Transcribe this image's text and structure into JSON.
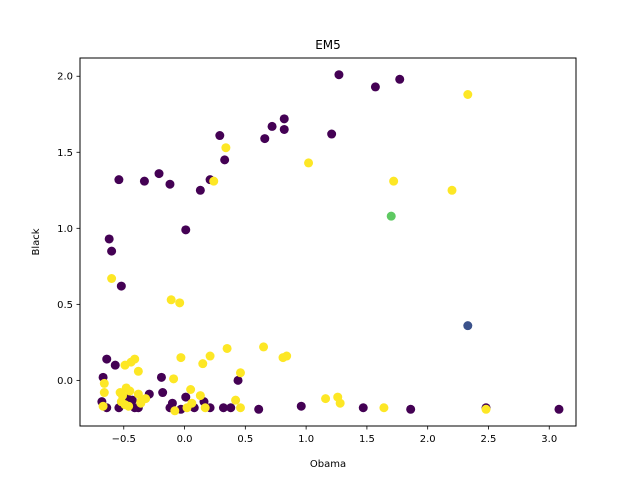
{
  "chart_data": {
    "type": "scatter",
    "title": "EM5",
    "xlabel": "Obama",
    "ylabel": "Black",
    "xlim": [
      -0.86,
      3.22
    ],
    "ylim": [
      -0.3,
      2.12
    ],
    "xticks": [
      -0.5,
      0.0,
      0.5,
      1.0,
      1.5,
      2.0,
      2.5,
      3.0
    ],
    "xtick_labels": [
      "−0.5",
      "0.0",
      "0.5",
      "1.0",
      "1.5",
      "2.0",
      "2.5",
      "3.0"
    ],
    "yticks": [
      0.0,
      0.5,
      1.0,
      1.5,
      2.0
    ],
    "ytick_labels": [
      "0.0",
      "0.5",
      "1.0",
      "1.5",
      "2.0"
    ],
    "grid": false,
    "legend": "none",
    "colors": {
      "c0": "#440154",
      "c1": "#3b528b",
      "c2": "#5ec962",
      "c3": "#fde725"
    },
    "points": [
      {
        "x": 1.27,
        "y": 2.01,
        "c": 0
      },
      {
        "x": 1.77,
        "y": 1.98,
        "c": 0
      },
      {
        "x": 1.57,
        "y": 1.93,
        "c": 0
      },
      {
        "x": 0.82,
        "y": 1.72,
        "c": 0
      },
      {
        "x": 0.72,
        "y": 1.67,
        "c": 0
      },
      {
        "x": 0.82,
        "y": 1.65,
        "c": 0
      },
      {
        "x": 1.21,
        "y": 1.62,
        "c": 0
      },
      {
        "x": 0.29,
        "y": 1.61,
        "c": 0
      },
      {
        "x": 0.66,
        "y": 1.59,
        "c": 0
      },
      {
        "x": 0.33,
        "y": 1.45,
        "c": 0
      },
      {
        "x": -0.21,
        "y": 1.36,
        "c": 0
      },
      {
        "x": -0.54,
        "y": 1.32,
        "c": 0
      },
      {
        "x": -0.33,
        "y": 1.31,
        "c": 0
      },
      {
        "x": 0.21,
        "y": 1.32,
        "c": 0
      },
      {
        "x": -0.12,
        "y": 1.29,
        "c": 0
      },
      {
        "x": 0.13,
        "y": 1.25,
        "c": 0
      },
      {
        "x": 0.01,
        "y": 0.99,
        "c": 0
      },
      {
        "x": -0.62,
        "y": 0.93,
        "c": 0
      },
      {
        "x": -0.6,
        "y": 0.85,
        "c": 0
      },
      {
        "x": -0.52,
        "y": 0.62,
        "c": 0
      },
      {
        "x": -0.64,
        "y": 0.14,
        "c": 0
      },
      {
        "x": -0.57,
        "y": 0.1,
        "c": 0
      },
      {
        "x": -0.67,
        "y": 0.02,
        "c": 0
      },
      {
        "x": -0.19,
        "y": 0.02,
        "c": 0
      },
      {
        "x": 0.44,
        "y": 0.0,
        "c": 0
      },
      {
        "x": -0.29,
        "y": -0.09,
        "c": 0
      },
      {
        "x": -0.18,
        "y": -0.08,
        "c": 0
      },
      {
        "x": -0.47,
        "y": -0.12,
        "c": 0
      },
      {
        "x": -0.43,
        "y": -0.13,
        "c": 0
      },
      {
        "x": 0.01,
        "y": -0.11,
        "c": 0
      },
      {
        "x": 0.16,
        "y": -0.14,
        "c": 0
      },
      {
        "x": -0.68,
        "y": -0.14,
        "c": 0
      },
      {
        "x": -0.64,
        "y": -0.18,
        "c": 0
      },
      {
        "x": -0.54,
        "y": -0.18,
        "c": 0
      },
      {
        "x": -0.41,
        "y": -0.18,
        "c": 0
      },
      {
        "x": -0.38,
        "y": -0.18,
        "c": 0
      },
      {
        "x": -0.12,
        "y": -0.18,
        "c": 0
      },
      {
        "x": -0.1,
        "y": -0.15,
        "c": 0
      },
      {
        "x": -0.03,
        "y": -0.19,
        "c": 0
      },
      {
        "x": 0.08,
        "y": -0.18,
        "c": 0
      },
      {
        "x": 0.21,
        "y": -0.18,
        "c": 0
      },
      {
        "x": 0.32,
        "y": -0.18,
        "c": 0
      },
      {
        "x": 0.38,
        "y": -0.18,
        "c": 0
      },
      {
        "x": 0.61,
        "y": -0.19,
        "c": 0
      },
      {
        "x": 0.96,
        "y": -0.17,
        "c": 0
      },
      {
        "x": 1.47,
        "y": -0.18,
        "c": 0
      },
      {
        "x": 1.86,
        "y": -0.19,
        "c": 0
      },
      {
        "x": 2.48,
        "y": -0.18,
        "c": 0
      },
      {
        "x": 3.08,
        "y": -0.19,
        "c": 0
      },
      {
        "x": 2.33,
        "y": 0.36,
        "c": 1
      },
      {
        "x": 1.7,
        "y": 1.08,
        "c": 2
      },
      {
        "x": 2.33,
        "y": 1.88,
        "c": 3
      },
      {
        "x": 0.34,
        "y": 1.53,
        "c": 3
      },
      {
        "x": 1.02,
        "y": 1.43,
        "c": 3
      },
      {
        "x": 1.72,
        "y": 1.31,
        "c": 3
      },
      {
        "x": 0.24,
        "y": 1.31,
        "c": 3
      },
      {
        "x": 2.2,
        "y": 1.25,
        "c": 3
      },
      {
        "x": -0.6,
        "y": 0.67,
        "c": 3
      },
      {
        "x": -0.11,
        "y": 0.53,
        "c": 3
      },
      {
        "x": -0.04,
        "y": 0.51,
        "c": 3
      },
      {
        "x": 0.65,
        "y": 0.22,
        "c": 3
      },
      {
        "x": 0.35,
        "y": 0.21,
        "c": 3
      },
      {
        "x": 0.21,
        "y": 0.16,
        "c": 3
      },
      {
        "x": 0.84,
        "y": 0.16,
        "c": 3
      },
      {
        "x": 0.81,
        "y": 0.15,
        "c": 3
      },
      {
        "x": -0.03,
        "y": 0.15,
        "c": 3
      },
      {
        "x": -0.41,
        "y": 0.14,
        "c": 3
      },
      {
        "x": -0.44,
        "y": 0.12,
        "c": 3
      },
      {
        "x": 0.15,
        "y": 0.11,
        "c": 3
      },
      {
        "x": -0.49,
        "y": 0.1,
        "c": 3
      },
      {
        "x": -0.38,
        "y": 0.06,
        "c": 3
      },
      {
        "x": 0.46,
        "y": 0.05,
        "c": 3
      },
      {
        "x": -0.09,
        "y": 0.01,
        "c": 3
      },
      {
        "x": -0.66,
        "y": -0.02,
        "c": 3
      },
      {
        "x": -0.48,
        "y": -0.05,
        "c": 3
      },
      {
        "x": 0.05,
        "y": -0.06,
        "c": 3
      },
      {
        "x": -0.45,
        "y": -0.07,
        "c": 3
      },
      {
        "x": -0.53,
        "y": -0.08,
        "c": 3
      },
      {
        "x": -0.66,
        "y": -0.08,
        "c": 3
      },
      {
        "x": -0.38,
        "y": -0.09,
        "c": 3
      },
      {
        "x": 0.13,
        "y": -0.1,
        "c": 3
      },
      {
        "x": -0.51,
        "y": -0.1,
        "c": 3
      },
      {
        "x": 1.26,
        "y": -0.11,
        "c": 3
      },
      {
        "x": 1.16,
        "y": -0.12,
        "c": 3
      },
      {
        "x": -0.32,
        "y": -0.12,
        "c": 3
      },
      {
        "x": 0.42,
        "y": -0.13,
        "c": 3
      },
      {
        "x": -0.36,
        "y": -0.14,
        "c": 3
      },
      {
        "x": -0.52,
        "y": -0.14,
        "c": 3
      },
      {
        "x": 1.28,
        "y": -0.15,
        "c": 3
      },
      {
        "x": -0.36,
        "y": -0.15,
        "c": 3
      },
      {
        "x": 0.06,
        "y": -0.15,
        "c": 3
      },
      {
        "x": -0.49,
        "y": -0.16,
        "c": 3
      },
      {
        "x": -0.67,
        "y": -0.17,
        "c": 3
      },
      {
        "x": -0.46,
        "y": -0.17,
        "c": 3
      },
      {
        "x": 0.02,
        "y": -0.18,
        "c": 3
      },
      {
        "x": 0.17,
        "y": -0.18,
        "c": 3
      },
      {
        "x": 0.46,
        "y": -0.18,
        "c": 3
      },
      {
        "x": 1.64,
        "y": -0.18,
        "c": 3
      },
      {
        "x": 2.48,
        "y": -0.19,
        "c": 3
      },
      {
        "x": -0.08,
        "y": -0.2,
        "c": 3
      }
    ]
  }
}
